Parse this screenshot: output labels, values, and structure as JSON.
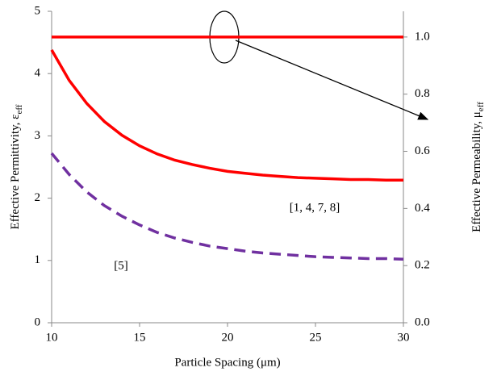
{
  "chart_data": {
    "type": "line",
    "x_label": "Particle Spacing (μm)",
    "y_label": "Effective Permittivity, ε",
    "y_label_sub": "eff",
    "y2_label": "Effective Permeability, μ",
    "y2_label_sub": "eff",
    "xlim": [
      10,
      30
    ],
    "xticks": [
      10,
      15,
      20,
      25,
      30
    ],
    "ylim": [
      0,
      5
    ],
    "yticks": [
      0,
      1,
      2,
      3,
      4,
      5
    ],
    "y2lim": [
      0,
      1.09
    ],
    "y2ticks": [
      {
        "value": 0,
        "label": "0.0"
      },
      0.2,
      0.4,
      0.6,
      0.8,
      {
        "value": 1,
        "label": "1.0"
      }
    ],
    "grid": false,
    "x": [
      10,
      11,
      12,
      13,
      14,
      15,
      16,
      17,
      18,
      19,
      20,
      21,
      22,
      23,
      24,
      25,
      26,
      27,
      28,
      29,
      30
    ],
    "series": [
      {
        "color": "#ff0000",
        "dashed": false,
        "values": [
          4.38,
          3.89,
          3.52,
          3.23,
          3.01,
          2.84,
          2.71,
          2.61,
          2.54,
          2.48,
          2.43,
          2.4,
          2.37,
          2.35,
          2.33,
          2.32,
          2.31,
          2.3,
          2.3,
          2.29,
          2.29
        ]
      },
      {
        "color": "#7030a0",
        "dashed": true,
        "values": [
          2.72,
          2.38,
          2.1,
          1.88,
          1.71,
          1.57,
          1.45,
          1.36,
          1.29,
          1.23,
          1.19,
          1.15,
          1.12,
          1.1,
          1.08,
          1.06,
          1.05,
          1.04,
          1.03,
          1.03,
          1.02
        ]
      },
      {
        "color": "#ff0000",
        "dashed": false,
        "axis": "y2",
        "values": [
          1,
          1,
          1,
          1,
          1,
          1,
          1,
          1,
          1,
          1,
          1,
          1,
          1,
          1,
          1,
          1,
          1,
          1,
          1,
          1,
          1
        ]
      }
    ],
    "annotations": [
      "[1, 4, 7, 8]",
      "[5]"
    ]
  }
}
